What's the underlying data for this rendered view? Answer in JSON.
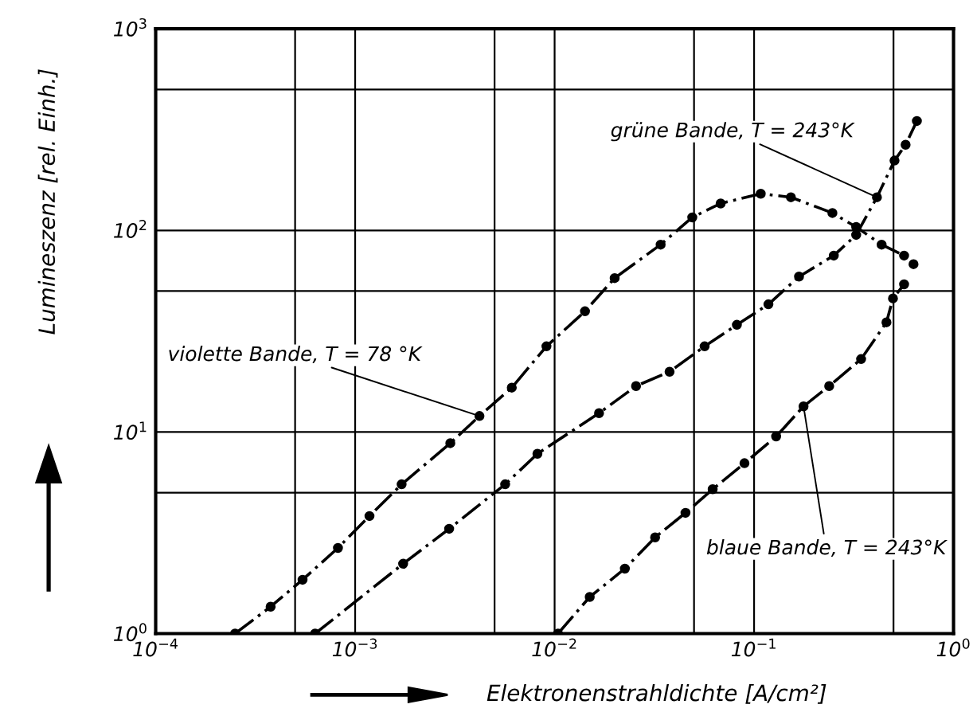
{
  "chart_data": {
    "type": "line",
    "xlabel": "Elektronenstrahldichte [A/cm²]",
    "ylabel": "Lumineszenz [rel. Einh.]",
    "log": "xy",
    "xlim": [
      0.0001,
      1
    ],
    "ylim": [
      1,
      1000
    ],
    "xticks": [
      {
        "value": 0.0001,
        "label": "10$^{−4}$"
      },
      {
        "value": 0.0005,
        "label": null
      },
      {
        "value": 0.001,
        "label": "10$^{−3}$"
      },
      {
        "value": 0.005,
        "label": null
      },
      {
        "value": 0.01,
        "label": "10$^{−2}$"
      },
      {
        "value": 0.05,
        "label": null
      },
      {
        "value": 0.1,
        "label": "10$^{−1}$"
      },
      {
        "value": 0.5,
        "label": null
      },
      {
        "value": 1,
        "label": "10$^{0}$"
      }
    ],
    "yticks": [
      {
        "value": 1,
        "label": "10$^{0}$"
      },
      {
        "value": 5,
        "label": null
      },
      {
        "value": 10,
        "label": "10$^{1}$"
      },
      {
        "value": 50,
        "label": null
      },
      {
        "value": 100,
        "label": "10$^{2}$"
      },
      {
        "value": 500,
        "label": null
      },
      {
        "value": 1000,
        "label": "10$^{3}$"
      }
    ],
    "grid": true,
    "legend": false,
    "line_style": "dashed",
    "marker": "circle",
    "series": [
      {
        "name": "violette Bande, T = 78 °K",
        "color": "#000000",
        "x": [
          0.00025,
          0.000377,
          0.000545,
          0.00082,
          0.00118,
          0.00171,
          0.003,
          0.0042,
          0.0061,
          0.0091,
          0.0142,
          0.02,
          0.034,
          0.049,
          0.068,
          0.108,
          0.153,
          0.247,
          0.325,
          0.436,
          0.565,
          0.63
        ],
        "values": [
          1.0,
          1.36,
          1.85,
          2.66,
          3.83,
          5.5,
          8.8,
          12,
          16.6,
          26.6,
          39.7,
          58,
          85,
          116,
          136,
          152,
          146,
          122,
          104,
          85,
          75,
          68
        ]
      },
      {
        "name": "grüne Bande, T = 243°K",
        "color": "#000000",
        "x": [
          0.00063,
          0.00174,
          0.00296,
          0.00565,
          0.0082,
          0.0167,
          0.0256,
          0.0377,
          0.0565,
          0.082,
          0.118,
          0.168,
          0.251,
          0.325,
          0.413,
          0.506,
          0.575,
          0.655
        ],
        "values": [
          1.0,
          2.22,
          3.31,
          5.5,
          7.8,
          12.4,
          16.9,
          19.9,
          26.6,
          34,
          43,
          59,
          75,
          95,
          146,
          222,
          266,
          349
        ]
      },
      {
        "name": "blaue Bande, T = 243°K",
        "color": "#000000",
        "x": [
          0.0104,
          0.015,
          0.0225,
          0.0319,
          0.0453,
          0.062,
          0.0895,
          0.129,
          0.177,
          0.238,
          0.344,
          0.461,
          0.497,
          0.565
        ],
        "values": [
          1.0,
          1.52,
          2.1,
          3.0,
          3.97,
          5.2,
          7.0,
          9.5,
          13.4,
          16.9,
          23,
          35,
          46,
          54
        ]
      }
    ]
  }
}
